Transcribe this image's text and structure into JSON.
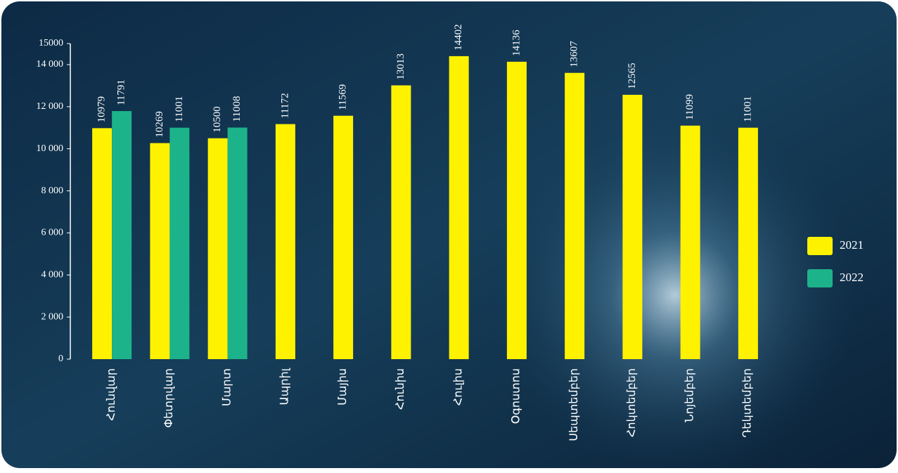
{
  "chart_data": {
    "type": "bar",
    "categories": [
      "Հունվար",
      "Փետրվար",
      "Մարտ",
      "Ապրիլ",
      "Մայիս",
      "Հունիս",
      "Հուլիս",
      "Օգոստոս",
      "Սեպտեմբեր",
      "Հոկտեմբեր",
      "Նոյեմբեր",
      "Դեկտեմբեր"
    ],
    "series": [
      {
        "name": "2021",
        "color": "#fff200",
        "values": [
          10979,
          10269,
          10500,
          11172,
          11569,
          13013,
          14402,
          14136,
          13607,
          12565,
          11099,
          11001
        ]
      },
      {
        "name": "2022",
        "color": "#1db38a",
        "values": [
          11791,
          11001,
          11008,
          null,
          null,
          null,
          null,
          null,
          null,
          null,
          null,
          null
        ]
      }
    ],
    "ylim": [
      0,
      15000
    ],
    "yticks": [
      0,
      {
        "value": 2000,
        "label": "2 000"
      },
      {
        "value": 4000,
        "label": "4 000"
      },
      {
        "value": 6000,
        "label": "6 000"
      },
      {
        "value": 8000,
        "label": "8 000"
      },
      {
        "value": 10000,
        "label": "10 000"
      },
      {
        "value": 12000,
        "label": "12 000"
      },
      {
        "value": 14000,
        "label": "14 000"
      },
      15000
    ],
    "legend": "right"
  }
}
